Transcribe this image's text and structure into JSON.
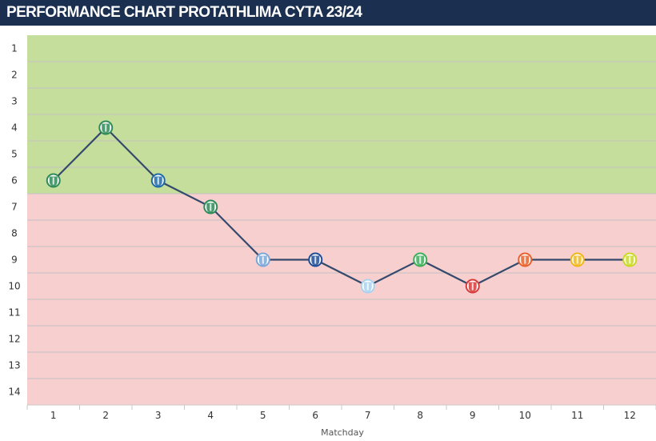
{
  "header": {
    "title": "PERFORMANCE CHART PROTATHLIMA CYTA 23/24"
  },
  "chart_data": {
    "type": "line",
    "title": "PERFORMANCE CHART PROTATHLIMA CYTA 23/24",
    "xlabel": "Matchday",
    "ylabel": "",
    "x": [
      1,
      2,
      3,
      4,
      5,
      6,
      7,
      8,
      9,
      10,
      11,
      12
    ],
    "y_inverted": true,
    "ylim": [
      1,
      14
    ],
    "xlim": [
      1,
      12
    ],
    "y_ticks": [
      1,
      2,
      3,
      4,
      5,
      6,
      7,
      8,
      9,
      10,
      11,
      12,
      13,
      14
    ],
    "series": [
      {
        "values": [
          6,
          4,
          6,
          7,
          9,
          9,
          10,
          9,
          10,
          9,
          9,
          9
        ],
        "color": "#34496b"
      }
    ],
    "bands": [
      {
        "from": 0.5,
        "to": 6.5,
        "color": "#c5de9c"
      },
      {
        "from": 6.5,
        "to": 14.5,
        "color": "#f7cfcf"
      }
    ],
    "opponent_badges": [
      {
        "icon": "club-crest-icon",
        "color": "#2e8b57"
      },
      {
        "icon": "club-crest-icon",
        "color": "#2e8b57"
      },
      {
        "icon": "club-crest-icon",
        "color": "#1e6aa8"
      },
      {
        "icon": "club-crest-icon",
        "color": "#2e8b57"
      },
      {
        "icon": "club-crest-icon",
        "color": "#7aa7d8"
      },
      {
        "icon": "club-crest-icon",
        "color": "#1e4c96"
      },
      {
        "icon": "club-crest-icon",
        "color": "#a9d2ef"
      },
      {
        "icon": "club-crest-icon",
        "color": "#3cae5a"
      },
      {
        "icon": "club-crest-icon",
        "color": "#d83a3a"
      },
      {
        "icon": "club-crest-icon",
        "color": "#e8602b"
      },
      {
        "icon": "club-crest-icon",
        "color": "#f2b619"
      },
      {
        "icon": "club-crest-icon",
        "color": "#c9d91e"
      }
    ],
    "grid": true,
    "legend": "none"
  }
}
